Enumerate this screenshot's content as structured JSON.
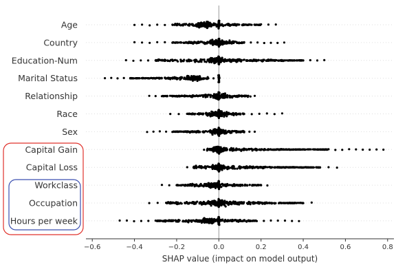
{
  "chart_data": {
    "type": "scatter",
    "subtype": "beeswarm",
    "xlabel": "SHAP value (impact on model output)",
    "xlim": [
      -0.63,
      0.83
    ],
    "xticks": [
      -0.6,
      -0.4,
      -0.2,
      0.0,
      0.2,
      0.4,
      0.6,
      0.8
    ],
    "xtick_labels": [
      "−0.6",
      "−0.4",
      "−0.2",
      "0.0",
      "0.2",
      "0.4",
      "0.6",
      "0.8"
    ],
    "grid": false,
    "point_color": "#000000",
    "features": [
      {
        "name": "Age",
        "range": [
          -0.4,
          0.27
        ],
        "bulk": [
          -0.22,
          0.2
        ],
        "dense_center": -0.07
      },
      {
        "name": "Country",
        "range": [
          -0.4,
          0.31
        ],
        "bulk": [
          -0.22,
          0.12
        ],
        "dense_center": 0.0
      },
      {
        "name": "Education-Num",
        "range": [
          -0.44,
          0.5
        ],
        "bulk": [
          -0.3,
          0.4
        ],
        "dense_center": -0.02
      },
      {
        "name": "Marital Status",
        "range": [
          -0.54,
          0.0
        ],
        "bulk": [
          -0.42,
          -0.05
        ],
        "dense_center": -0.12
      },
      {
        "name": "Relationship",
        "range": [
          -0.33,
          0.17
        ],
        "bulk": [
          -0.27,
          0.15
        ],
        "dense_center": 0.0
      },
      {
        "name": "Race",
        "range": [
          -0.23,
          0.3
        ],
        "bulk": [
          -0.15,
          0.12
        ],
        "dense_center": 0.0
      },
      {
        "name": "Sex",
        "range": [
          -0.34,
          0.17
        ],
        "bulk": [
          -0.22,
          0.12
        ],
        "dense_center": 0.0
      },
      {
        "name": "Capital Gain",
        "range": [
          -0.07,
          0.78
        ],
        "bulk": [
          -0.06,
          0.52
        ],
        "dense_center": 0.0
      },
      {
        "name": "Capital Loss",
        "range": [
          -0.15,
          0.56
        ],
        "bulk": [
          -0.12,
          0.48
        ],
        "dense_center": 0.0
      },
      {
        "name": "Workclass",
        "range": [
          -0.27,
          0.23
        ],
        "bulk": [
          -0.2,
          0.2
        ],
        "dense_center": -0.02
      },
      {
        "name": "Occupation",
        "range": [
          -0.33,
          0.44
        ],
        "bulk": [
          -0.25,
          0.4
        ],
        "dense_center": 0.0
      },
      {
        "name": "Hours per week",
        "range": [
          -0.47,
          0.38
        ],
        "bulk": [
          -0.3,
          0.18
        ],
        "dense_center": -0.05
      }
    ],
    "annotations": [
      {
        "shape": "rounded-rect",
        "color": "#e0312b",
        "encloses": [
          "Capital Gain",
          "Capital Loss",
          "Workclass",
          "Occupation",
          "Hours per week"
        ]
      },
      {
        "shape": "rounded-rect",
        "color": "#3a4fb0",
        "encloses": [
          "Workclass",
          "Occupation",
          "Hours per week"
        ]
      }
    ]
  }
}
